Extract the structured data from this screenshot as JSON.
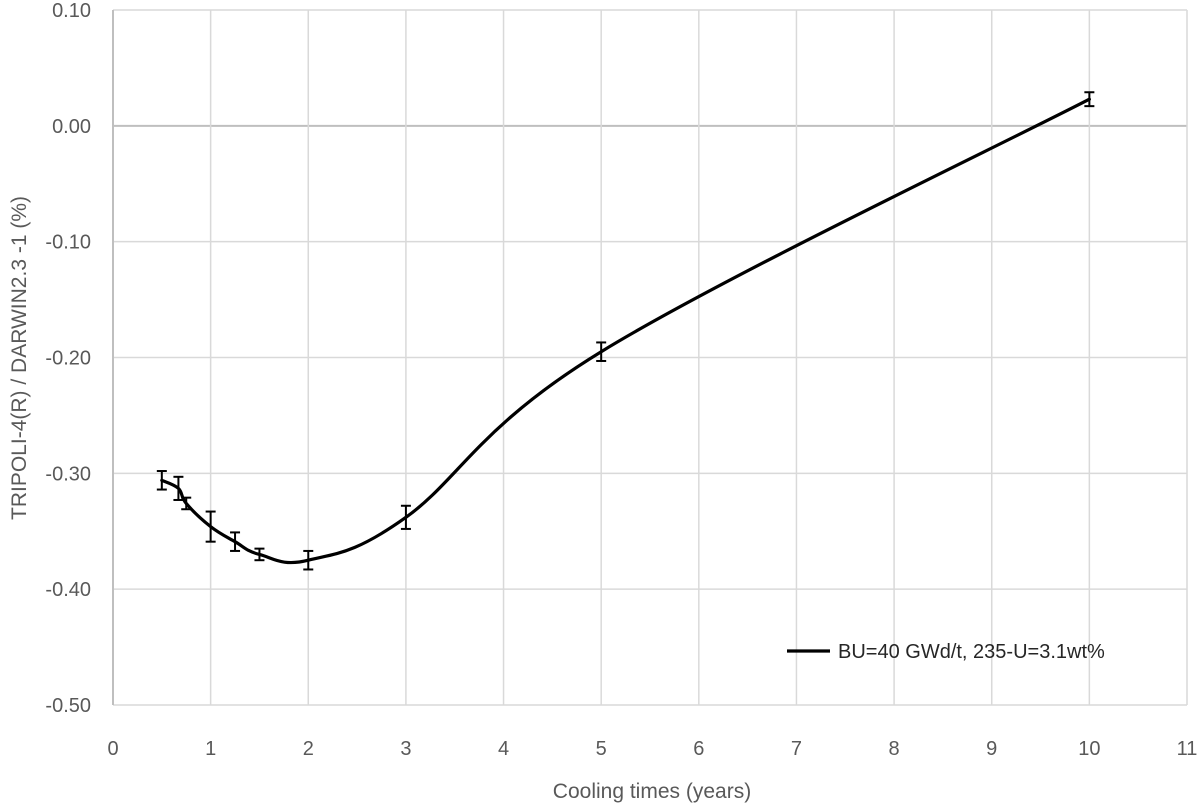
{
  "chart_data": {
    "type": "line",
    "title": "",
    "xlabel": "Cooling times (years)",
    "ylabel": "TRIPOLI-4(R) / DARWIN2.3 -1 (%)",
    "xlim": [
      0,
      11
    ],
    "ylim": [
      -0.5,
      0.1
    ],
    "x_ticks": [
      0,
      1,
      2,
      3,
      4,
      5,
      6,
      7,
      8,
      9,
      10,
      11
    ],
    "y_ticks": [
      -0.5,
      -0.4,
      -0.3,
      -0.2,
      -0.1,
      0.0,
      0.1
    ],
    "y_tick_labels": [
      "-0.50",
      "-0.40",
      "-0.30",
      "-0.20",
      "-0.10",
      "0.00",
      "0.10"
    ],
    "grid": true,
    "legend_position": "bottom-right",
    "series": [
      {
        "name": "BU=40 GWd/t, 235-U=3.1wt%",
        "color": "#000000",
        "smooth": true,
        "x": [
          0.5,
          0.67,
          0.75,
          1.0,
          1.25,
          1.5,
          2.0,
          3.0,
          5.0,
          10.0
        ],
        "y": [
          -0.306,
          -0.313,
          -0.326,
          -0.346,
          -0.359,
          -0.37,
          -0.375,
          -0.338,
          -0.195,
          0.023
        ],
        "error": [
          0.008,
          0.01,
          0.005,
          0.013,
          0.008,
          0.005,
          0.008,
          0.01,
          0.008,
          0.006
        ]
      }
    ]
  }
}
